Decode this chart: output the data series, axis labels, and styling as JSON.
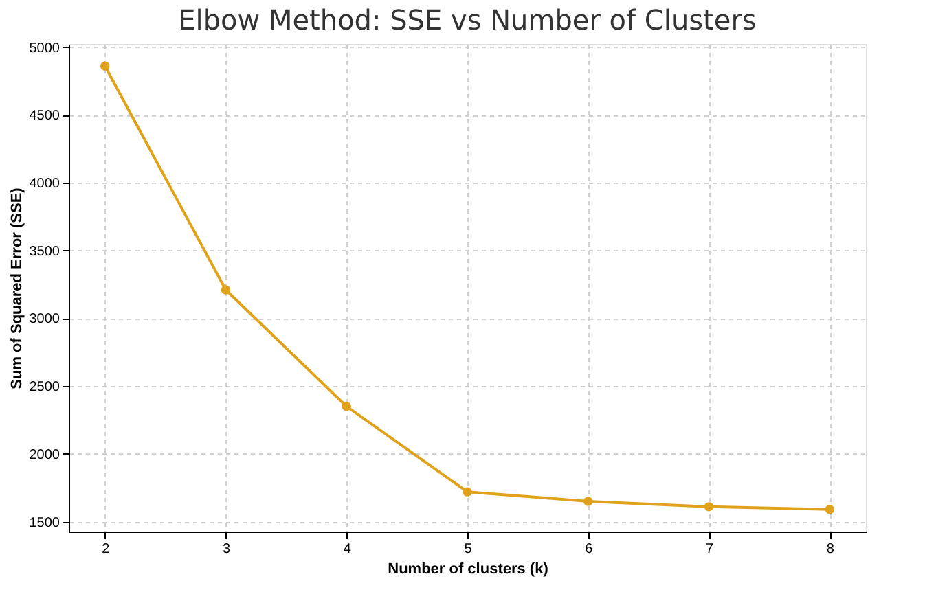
{
  "chart_data": {
    "type": "line",
    "title": "Elbow Method: SSE vs Number of Clusters",
    "xlabel": "Number of clusters (k)",
    "ylabel": "Sum of Squared Error (SSE)",
    "x": [
      2,
      3,
      4,
      5,
      6,
      7,
      8
    ],
    "series": [
      {
        "color": "#e0a21a",
        "values": [
          4860,
          3210,
          2350,
          1720,
          1650,
          1610,
          1590
        ]
      }
    ],
    "xlim": [
      1.7,
      8.3
    ],
    "xticks": [
      2,
      3,
      4,
      5,
      6,
      7,
      8
    ],
    "ylim": [
      1427,
      5023
    ],
    "yticks": [
      1500,
      2000,
      2500,
      3000,
      3500,
      4000,
      4500,
      5000
    ],
    "grid": true,
    "marker": "circle",
    "line_style": "solid",
    "legend": false
  }
}
